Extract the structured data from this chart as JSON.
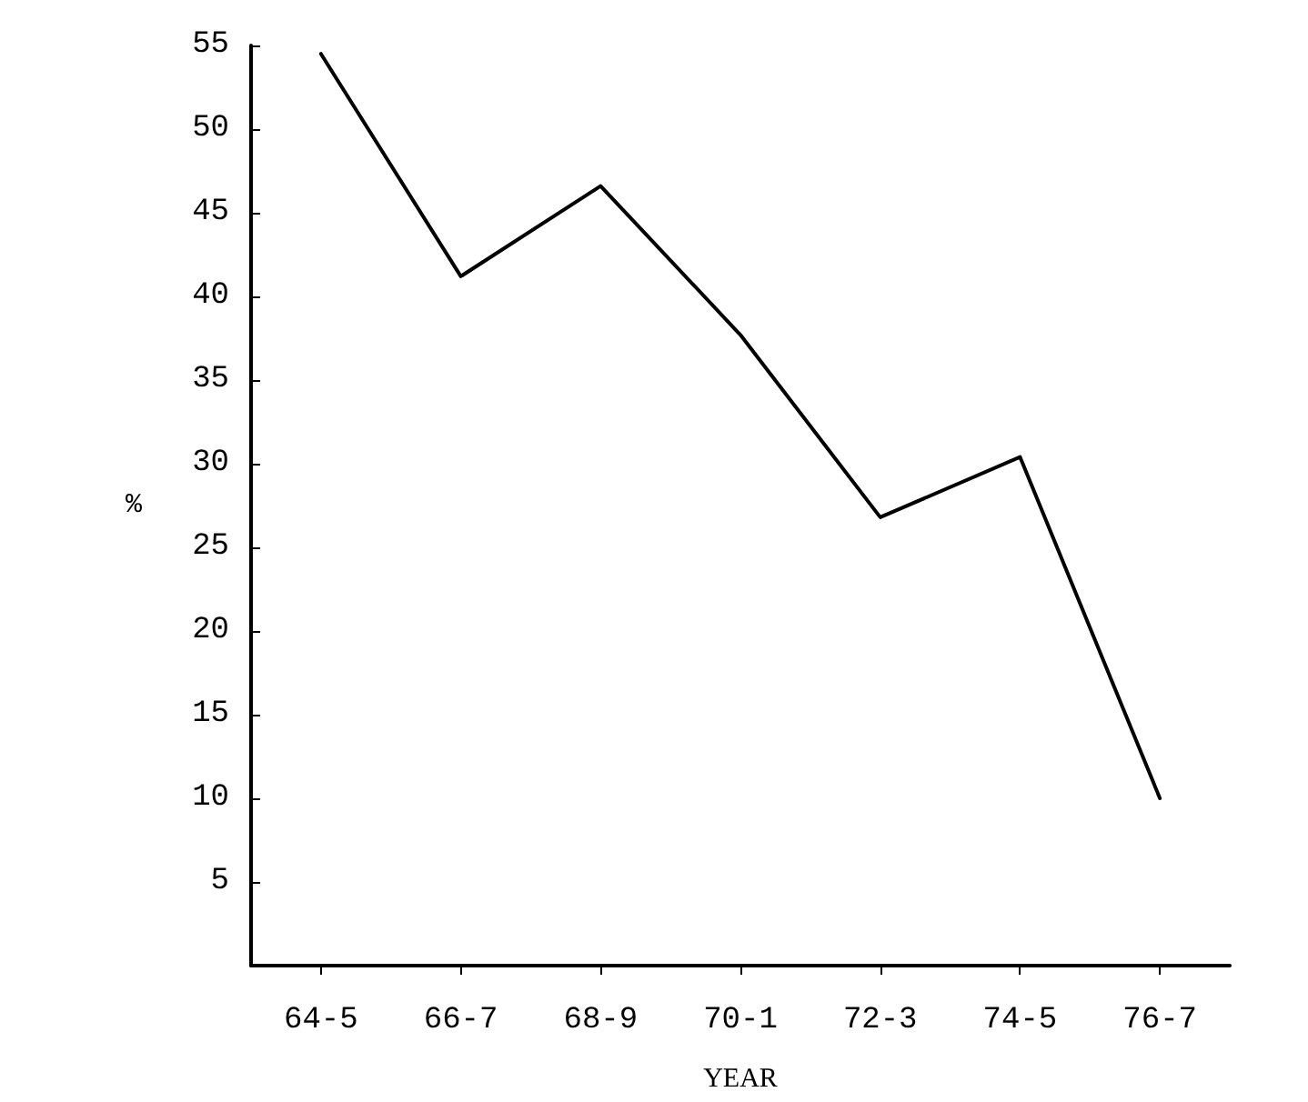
{
  "chart_data": {
    "type": "line",
    "xlabel": "YEAR",
    "ylabel": "%",
    "categories": [
      "64-5",
      "66-7",
      "68-9",
      "70-1",
      "72-3",
      "74-5",
      "76-7"
    ],
    "series": [
      {
        "color": "#000000",
        "values": [
          54.5,
          41.2,
          46.6,
          37.7,
          26.8,
          30.4,
          10
        ]
      }
    ],
    "ylim": [
      0,
      55
    ],
    "yticks": [
      5,
      10,
      15,
      20,
      25,
      30,
      35,
      40,
      45,
      50,
      55
    ],
    "grid": false,
    "marker": "none",
    "line_style": "solid"
  }
}
